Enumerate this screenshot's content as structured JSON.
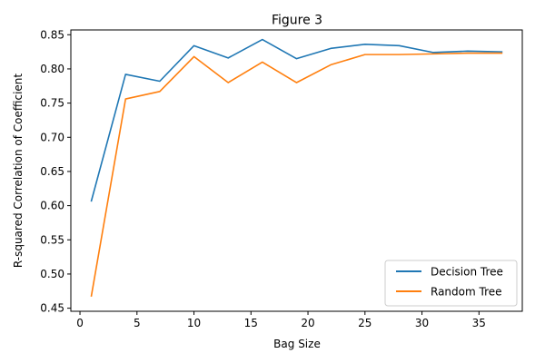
{
  "colors": {
    "decision_tree": "#1f77b4",
    "random_tree": "#ff7f0e",
    "axis": "#000000",
    "legend_border": "#cccccc",
    "background": "#ffffff"
  },
  "chart_data": {
    "type": "line",
    "title": "Figure 3",
    "xlabel": "Bag Size",
    "ylabel": "R-squared Correlation of Coefficient",
    "x": [
      1,
      4,
      7,
      10,
      13,
      16,
      19,
      22,
      25,
      28,
      31,
      34,
      37
    ],
    "xlim": [
      -0.8,
      38.8
    ],
    "ylim": [
      0.4455,
      0.857
    ],
    "xticks": [
      0,
      5,
      10,
      15,
      20,
      25,
      30,
      35
    ],
    "yticks": [
      0.45,
      0.5,
      0.55,
      0.6,
      0.65,
      0.7,
      0.75,
      0.8,
      0.85
    ],
    "xtick_labels": [
      "0",
      "5",
      "10",
      "15",
      "20",
      "25",
      "30",
      "35"
    ],
    "ytick_labels": [
      "0.45",
      "0.50",
      "0.55",
      "0.60",
      "0.65",
      "0.70",
      "0.75",
      "0.80",
      "0.85"
    ],
    "grid": false,
    "legend": {
      "position": "lower-right"
    },
    "series": [
      {
        "name": "Decision Tree",
        "color": "#1f77b4",
        "values": [
          0.607,
          0.792,
          0.782,
          0.834,
          0.816,
          0.843,
          0.815,
          0.83,
          0.836,
          0.834,
          0.824,
          0.826,
          0.825
        ]
      },
      {
        "name": "Random Tree",
        "color": "#ff7f0e",
        "values": [
          0.468,
          0.756,
          0.767,
          0.818,
          0.78,
          0.81,
          0.78,
          0.806,
          0.821,
          0.821,
          0.822,
          0.823,
          0.823
        ]
      }
    ]
  }
}
